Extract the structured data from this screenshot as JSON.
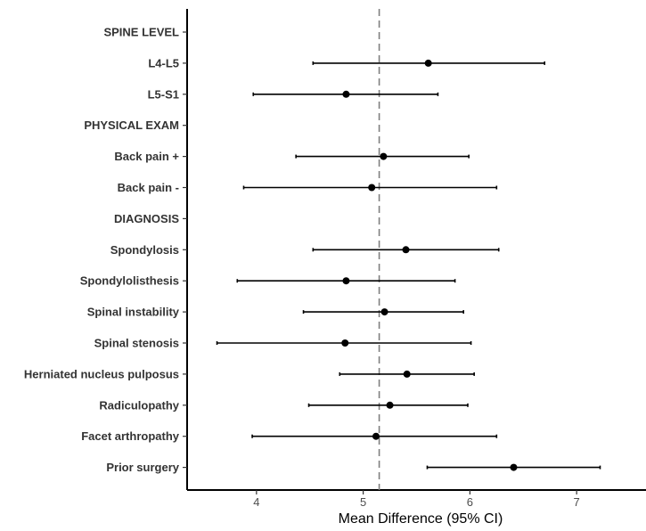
{
  "chart_data": {
    "type": "forest",
    "xlabel": "Mean Difference (95% CI)",
    "ylabel": "",
    "xlim": [
      3.35,
      7.65
    ],
    "x_ticks": [
      4,
      5,
      6,
      7
    ],
    "x_tick_labels": [
      "4",
      "5",
      "6",
      "7"
    ],
    "reference_line": 5.15,
    "grid": false,
    "rows": [
      {
        "label": "SPINE LEVEL",
        "header": true
      },
      {
        "label": "L4-L5",
        "mean": 5.61,
        "lower": 4.53,
        "upper": 6.7
      },
      {
        "label": "L5-S1",
        "mean": 4.84,
        "lower": 3.97,
        "upper": 5.7
      },
      {
        "label": "PHYSICAL EXAM",
        "header": true
      },
      {
        "label": "Back pain +",
        "mean": 5.19,
        "lower": 4.37,
        "upper": 5.99
      },
      {
        "label": "Back pain -",
        "mean": 5.08,
        "lower": 3.88,
        "upper": 6.25
      },
      {
        "label": "DIAGNOSIS",
        "header": true
      },
      {
        "label": "Spondylosis",
        "mean": 5.4,
        "lower": 4.53,
        "upper": 6.27
      },
      {
        "label": "Spondylolisthesis",
        "mean": 4.84,
        "lower": 3.82,
        "upper": 5.86
      },
      {
        "label": "Spinal instability",
        "mean": 5.2,
        "lower": 4.44,
        "upper": 5.94
      },
      {
        "label": "Spinal stenosis",
        "mean": 4.83,
        "lower": 3.63,
        "upper": 6.01
      },
      {
        "label": "Herniated nucleus pulposus",
        "mean": 5.41,
        "lower": 4.78,
        "upper": 6.04
      },
      {
        "label": "Radiculopathy",
        "mean": 5.25,
        "lower": 4.49,
        "upper": 5.98
      },
      {
        "label": "Facet arthropathy",
        "mean": 5.12,
        "lower": 3.96,
        "upper": 6.25
      },
      {
        "label": "Prior surgery",
        "mean": 6.41,
        "lower": 5.6,
        "upper": 7.22
      }
    ]
  }
}
